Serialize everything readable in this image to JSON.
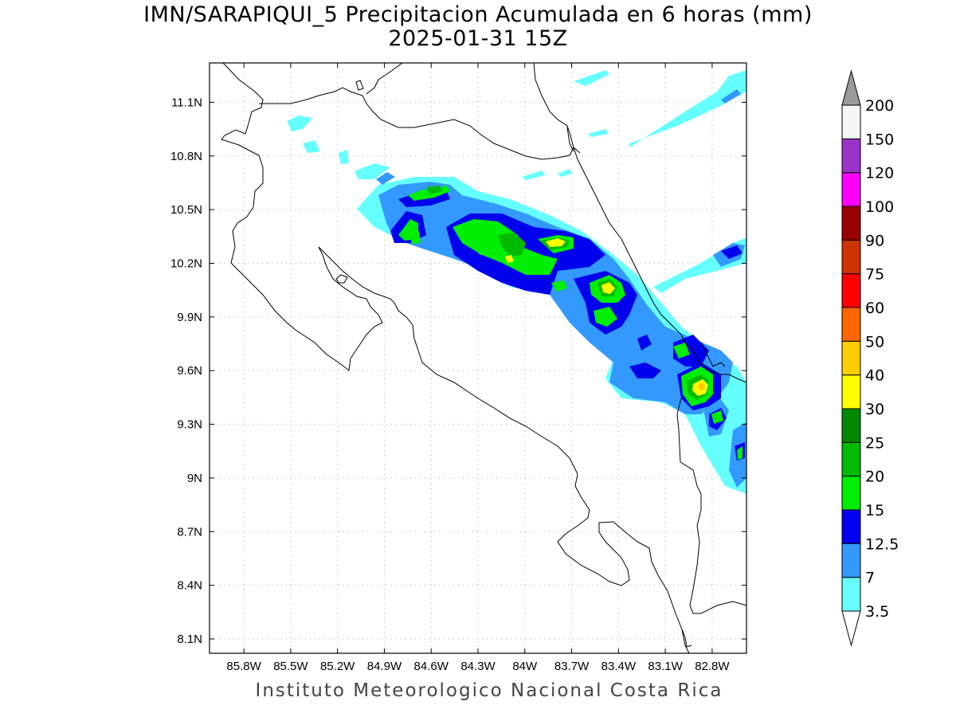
{
  "title": {
    "line1": "IMN/SARAPIQUI_5 Precipitacion Acumulada en 6 horas (mm)",
    "line2": "2025-01-31 15Z"
  },
  "footer": "Instituto Meteorologico Nacional Costa Rica",
  "map": {
    "type": "filled-contour precipitation map",
    "region": "Costa Rica",
    "lon_range": [
      -86.02,
      -82.58
    ],
    "lat_range": [
      8.02,
      11.32
    ],
    "grid": true,
    "lon_ticks": [
      "85.8W",
      "85.5W",
      "85.2W",
      "84.9W",
      "84.6W",
      "84.3W",
      "84W",
      "83.7W",
      "83.4W",
      "83.1W",
      "82.8W"
    ],
    "lat_ticks": [
      "8.1N",
      "8.4N",
      "8.7N",
      "9N",
      "9.3N",
      "9.6N",
      "9.9N",
      "10.2N",
      "10.5N",
      "10.8N",
      "11.1N"
    ]
  },
  "colorbar": {
    "labels": [
      "3.5",
      "7",
      "12.5",
      "15",
      "20",
      "25",
      "30",
      "40",
      "50",
      "60",
      "75",
      "90",
      "100",
      "120",
      "150",
      "200"
    ],
    "colors": [
      "#66ffff",
      "#3399ff",
      "#0000ee",
      "#00ee00",
      "#00bb00",
      "#008800",
      "#ffff00",
      "#ffcc00",
      "#ff6600",
      "#ff0000",
      "#cc3300",
      "#990000",
      "#ff00ff",
      "#9933cc",
      "#f5f5f5"
    ],
    "top_arrow_color": "#999999",
    "bottom_arrow_color": "#ffffff"
  },
  "precip_levels": {
    "3.5": "#66ffff",
    "7": "#3399ff",
    "12.5": "#0000ee",
    "15": "#00ee00",
    "20": "#00bb00",
    "25": "#008800",
    "30": "#ffff00",
    "40": "#ffcc00"
  }
}
